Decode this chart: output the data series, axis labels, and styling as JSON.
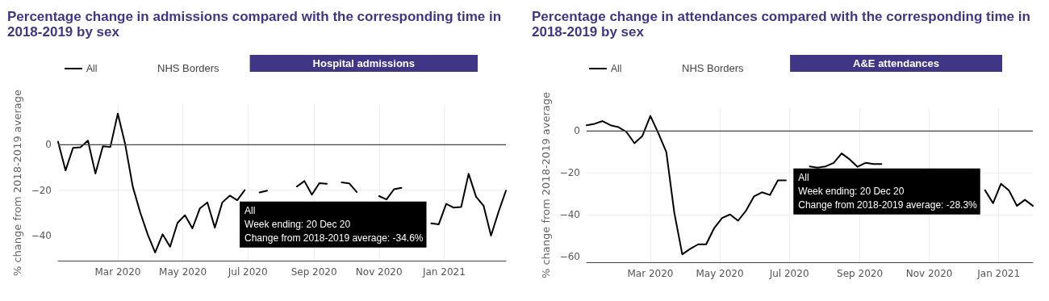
{
  "chart_data": [
    {
      "type": "line",
      "title": "Percentage change in admissions compared with the corresponding time in 2018-2019 by sex",
      "subtitle": "NHS Borders",
      "ylabel": "% change from 2018-2019 average",
      "annotations": [
        "Hospital admissions",
        {
          "text": "All\nWeek ending: 20 Dec 20\nChange from 2018-2019 average: -34.6%",
          "x": "2020-12-20",
          "y": -34.6
        }
      ],
      "x": [
        "2020-01-05",
        "2020-01-12",
        "2020-01-19",
        "2020-01-26",
        "2020-02-02",
        "2020-02-09",
        "2020-02-16",
        "2020-02-23",
        "2020-03-01",
        "2020-03-08",
        "2020-03-15",
        "2020-03-22",
        "2020-03-29",
        "2020-04-05",
        "2020-04-12",
        "2020-04-19",
        "2020-04-26",
        "2020-05-03",
        "2020-05-10",
        "2020-05-17",
        "2020-05-24",
        "2020-05-31",
        "2020-06-07",
        "2020-06-14",
        "2020-06-21",
        "2020-06-28",
        "2020-07-05",
        "2020-07-12",
        "2020-07-19",
        "2020-07-26",
        "2020-08-02",
        "2020-08-09",
        "2020-08-16",
        "2020-08-23",
        "2020-08-30",
        "2020-09-06",
        "2020-09-13",
        "2020-09-20",
        "2020-09-27",
        "2020-10-04",
        "2020-10-11",
        "2020-10-18",
        "2020-10-25",
        "2020-11-01",
        "2020-11-08",
        "2020-11-15",
        "2020-11-22",
        "2020-11-29",
        "2020-12-06",
        "2020-12-13",
        "2020-12-20",
        "2020-12-27",
        "2021-01-03",
        "2021-01-10",
        "2021-01-17",
        "2021-01-24",
        "2021-01-31",
        "2021-02-07",
        "2021-02-14",
        "2021-02-21",
        "2021-02-28"
      ],
      "series": [
        {
          "name": "All",
          "color": "#000000",
          "values": [
            1.3,
            -11.3,
            -1.4,
            -1.1,
            1.8,
            -12.7,
            -0.7,
            -1.0,
            13.7,
            0.0,
            -18.4,
            -29.8,
            -39.4,
            -47.4,
            -39.4,
            -44.9,
            -34.4,
            -31.0,
            -36.8,
            -28.0,
            -25.4,
            -36.5,
            -25.4,
            -22.4,
            -24.4,
            -20.0,
            null,
            -21.0,
            -20.2,
            null,
            null,
            null,
            -18.4,
            -16.0,
            -22.0,
            -16.9,
            -17.2,
            null,
            -16.6,
            -17.0,
            -20.8,
            null,
            null,
            -22.6,
            -24.1,
            -19.6,
            -19.0,
            null,
            null,
            null,
            -34.6,
            -35.0,
            -26.0,
            -27.7,
            -27.4,
            -12.8,
            -22.9,
            -26.8,
            -40.0,
            -29.6,
            -20.2
          ]
        }
      ],
      "xlim": [
        "2020-01-05",
        "2021-02-28"
      ],
      "xticks": [
        {
          "value": "2020-03-01",
          "label": "Mar 2020"
        },
        {
          "value": "2020-05-01",
          "label": "May 2020"
        },
        {
          "value": "2020-07-01",
          "label": "Jul 2020"
        },
        {
          "value": "2020-09-01",
          "label": "Sep 2020"
        },
        {
          "value": "2020-11-01",
          "label": "Nov 2020"
        },
        {
          "value": "2021-01-01",
          "label": "Jan 2021"
        }
      ],
      "ylim": [
        -51,
        17.5
      ],
      "yticks": [
        -40,
        -20,
        0
      ],
      "ref_lines": [
        {
          "axis": "y",
          "value": 0,
          "color": "#444444"
        }
      ],
      "grid": true,
      "legend": "top",
      "marker": "none",
      "line_style": "solid"
    },
    {
      "type": "line",
      "title": "Percentage change in attendances compared with the corresponding time in 2018-2019 by sex",
      "subtitle": "NHS Borders",
      "ylabel": "% change from 2018-2019 average",
      "annotations": [
        "A&E attendances",
        {
          "text": "All\nWeek ending: 20 Dec 20\nChange from 2018-2019 average: -28.3%",
          "x": "2020-12-20",
          "y": -28.3
        }
      ],
      "x": [
        "2020-01-05",
        "2020-01-12",
        "2020-01-19",
        "2020-01-26",
        "2020-02-02",
        "2020-02-09",
        "2020-02-16",
        "2020-02-23",
        "2020-03-01",
        "2020-03-08",
        "2020-03-15",
        "2020-03-22",
        "2020-03-29",
        "2020-04-05",
        "2020-04-12",
        "2020-04-19",
        "2020-04-26",
        "2020-05-03",
        "2020-05-10",
        "2020-05-17",
        "2020-05-24",
        "2020-05-31",
        "2020-06-07",
        "2020-06-14",
        "2020-06-21",
        "2020-06-28",
        "2020-07-05",
        "2020-07-12",
        "2020-07-19",
        "2020-07-26",
        "2020-08-02",
        "2020-08-09",
        "2020-08-16",
        "2020-08-23",
        "2020-08-30",
        "2020-09-06",
        "2020-09-13",
        "2020-09-20",
        "2020-09-27",
        "2020-10-04",
        "2020-10-11",
        "2020-10-18",
        "2020-10-25",
        "2020-11-01",
        "2020-11-08",
        "2020-11-15",
        "2020-11-22",
        "2020-11-29",
        "2020-12-06",
        "2020-12-13",
        "2020-12-20",
        "2020-12-27",
        "2021-01-03",
        "2021-01-10",
        "2021-01-17",
        "2021-01-24",
        "2021-01-31"
      ],
      "series": [
        {
          "name": "All",
          "color": "#000000",
          "values": [
            2.8,
            3.5,
            4.8,
            2.8,
            1.9,
            -0.4,
            -5.8,
            -2.3,
            7.3,
            -1.0,
            -10.0,
            -39.0,
            -59.0,
            -56.4,
            -54.2,
            -54.2,
            -46.5,
            -41.6,
            -39.9,
            -42.9,
            -38.1,
            -31.3,
            -29.3,
            -30.6,
            -23.6,
            -23.6,
            null,
            null,
            -16.9,
            -17.5,
            -16.9,
            -15.2,
            -10.7,
            -13.5,
            -17.1,
            -15.2,
            -15.8,
            -15.8,
            null,
            null,
            null,
            null,
            null,
            null,
            null,
            null,
            null,
            null,
            null,
            null,
            -28.3,
            -34.5,
            -25.2,
            -28.4,
            -35.8,
            -32.9,
            -35.8
          ]
        }
      ],
      "xlim": [
        "2020-01-05",
        "2021-01-31"
      ],
      "xticks": [
        {
          "value": "2020-03-01",
          "label": "Mar 2020"
        },
        {
          "value": "2020-05-01",
          "label": "May 2020"
        },
        {
          "value": "2020-07-01",
          "label": "Jul 2020"
        },
        {
          "value": "2020-09-01",
          "label": "Sep 2020"
        },
        {
          "value": "2020-11-01",
          "label": "Nov 2020"
        },
        {
          "value": "2021-01-01",
          "label": "Jan 2021"
        }
      ],
      "ylim": [
        -62.8,
        11
      ],
      "yticks": [
        -60,
        -40,
        -20,
        0
      ],
      "ref_lines": [
        {
          "axis": "y",
          "value": 0,
          "color": "#444444"
        }
      ],
      "grid": true,
      "legend": "top",
      "marker": "none",
      "line_style": "solid"
    }
  ]
}
